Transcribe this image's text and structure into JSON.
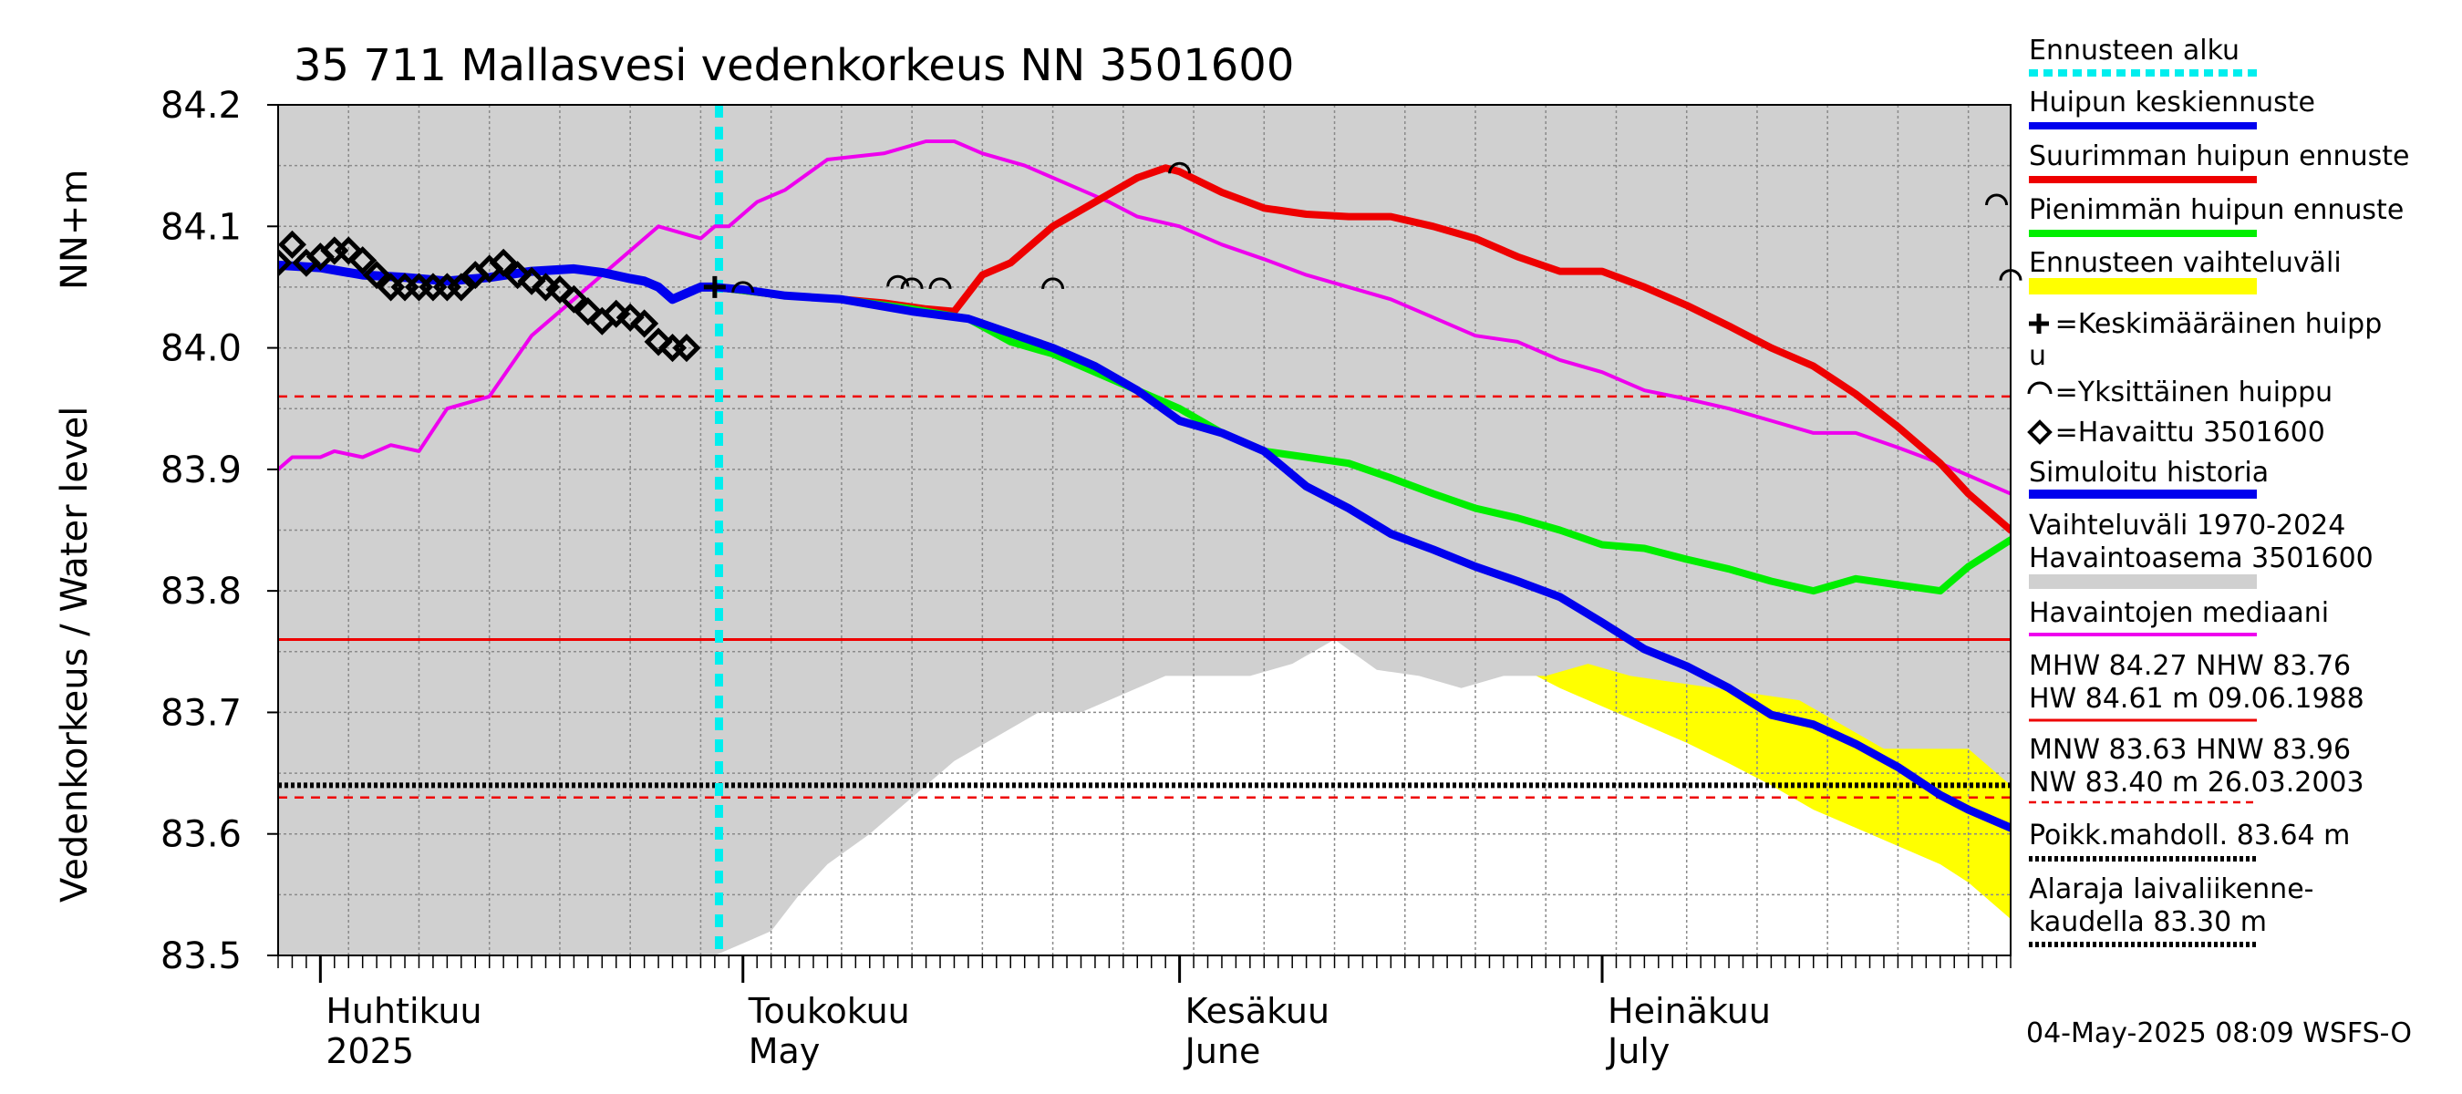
{
  "title": "35 711 Mallasvesi vedenkorkeus NN 3501600",
  "ylabel_main": "Vedenkorkeus / Water level",
  "ylabel_unit": "NN+m",
  "footer": "04-May-2025 08:09 WSFS-O",
  "colors": {
    "variation_band": "#d0d0d0",
    "forecast_band": "#ffff00",
    "mean_peak": "#0000ee",
    "max_peak": "#ee0000",
    "min_peak": "#00ee00",
    "median": "#ee00ee",
    "simulated": "#0000ee",
    "forecast_start": "#00eeee",
    "reference_line": "#ee0000"
  },
  "x_labels": [
    {
      "top": "Huhtikuu",
      "bottom": "2025"
    },
    {
      "top": "Toukokuu",
      "bottom": "May"
    },
    {
      "top": "Kesäkuu",
      "bottom": "June"
    },
    {
      "top": "Heinäkuu",
      "bottom": "July"
    }
  ],
  "legend": [
    {
      "key": "forecast_start",
      "label": "Ennusteen alku"
    },
    {
      "key": "mean_peak",
      "label": "Huipun keskiennuste"
    },
    {
      "key": "max_peak",
      "label": "Suurimman huipun ennuste"
    },
    {
      "key": "min_peak",
      "label": "Pienimmän huipun ennuste"
    },
    {
      "key": "forecast_band",
      "label": "Ennusteen vaihteluväli"
    },
    {
      "key": "mean_marker",
      "label_lines": [
        "=Keskimääräinen huipp",
        "u"
      ]
    },
    {
      "key": "single_peak",
      "label": "=Yksittäinen huippu"
    },
    {
      "key": "observed",
      "label": "=Havaittu 3501600"
    },
    {
      "key": "simulated",
      "label": "Simuloitu historia"
    },
    {
      "key": "variation_band",
      "label_lines": [
        "Vaihteluväli 1970-2024",
        " Havaintoasema 3501600"
      ]
    },
    {
      "key": "median",
      "label": "Havaintojen mediaani"
    },
    {
      "key": "stats_high",
      "label_lines": [
        "MHW  84.27 NHW  83.76",
        "HW  84.61 m 09.06.1988"
      ]
    },
    {
      "key": "stats_low",
      "label_lines": [
        "MNW  83.63 HNW  83.96",
        "NW  83.40 m 26.03.2003"
      ]
    },
    {
      "key": "poikk",
      "label": "Poikk.mahdoll. 83.64 m"
    },
    {
      "key": "alaraja",
      "label_lines": [
        "Alaraja laivaliikenne-",
        "kaudella 83.30 m"
      ]
    }
  ],
  "chart_data": {
    "type": "line",
    "title": "35 711 Mallasvesi vedenkorkeus NN 3501600",
    "ylabel": "Vedenkorkeus / Water level NN+m",
    "x_unit": "day of year 2025",
    "xlim": [
      88,
      211
    ],
    "ylim": [
      83.5,
      84.2
    ],
    "y_ticks": [
      "84.2",
      "84.1",
      "84.0",
      "83.9",
      "83.8",
      "83.7",
      "83.6",
      "83.5"
    ],
    "grid": true,
    "forecast_start_day": 119.3,
    "reference_lines": {
      "NHW": 83.76,
      "HNW": 83.96,
      "MNW": 83.63,
      "poikk": 83.64
    },
    "series": [
      {
        "name": "Huipun keskiennuste",
        "key": "mean_peak",
        "x": [
          119,
          121,
          124,
          128,
          133,
          137,
          140,
          143,
          146,
          149,
          152,
          155,
          158,
          161,
          164,
          167,
          170,
          173,
          176,
          179,
          182,
          185,
          188,
          191,
          194,
          197,
          200,
          203,
          206,
          208,
          211
        ],
        "y": [
          84.05,
          84.048,
          84.043,
          84.04,
          84.03,
          84.024,
          84.012,
          84.0,
          83.985,
          83.965,
          83.94,
          83.93,
          83.915,
          83.886,
          83.868,
          83.847,
          83.834,
          83.82,
          83.808,
          83.795,
          83.774,
          83.752,
          83.738,
          83.72,
          83.698,
          83.69,
          83.674,
          83.655,
          83.632,
          83.62,
          83.605
        ]
      },
      {
        "name": "Suurimman huipun ennuste",
        "key": "max_peak",
        "x": [
          119,
          124,
          128,
          131,
          134,
          136,
          138,
          140,
          143,
          146,
          149,
          151,
          152,
          155,
          158,
          161,
          164,
          167,
          170,
          173,
          176,
          179,
          182,
          185,
          188,
          191,
          194,
          197,
          200,
          203,
          206,
          208,
          211
        ],
        "y": [
          84.05,
          84.043,
          84.04,
          84.037,
          84.032,
          84.03,
          84.06,
          84.07,
          84.1,
          84.12,
          84.14,
          84.148,
          84.145,
          84.128,
          84.115,
          84.11,
          84.108,
          84.108,
          84.1,
          84.09,
          84.075,
          84.063,
          84.063,
          84.05,
          84.035,
          84.018,
          84.0,
          83.985,
          83.962,
          83.935,
          83.905,
          83.88,
          83.85
        ]
      },
      {
        "name": "Pienimmän huipun ennuste",
        "key": "min_peak",
        "x": [
          119,
          124,
          128,
          133,
          137,
          140,
          143,
          146,
          149,
          152,
          155,
          158,
          161,
          164,
          167,
          170,
          173,
          176,
          179,
          182,
          185,
          188,
          191,
          194,
          197,
          200,
          203,
          206,
          208,
          211
        ],
        "y": [
          84.05,
          84.043,
          84.04,
          84.032,
          84.024,
          84.005,
          83.995,
          83.98,
          83.965,
          83.95,
          83.93,
          83.915,
          83.91,
          83.905,
          83.893,
          83.88,
          83.868,
          83.86,
          83.85,
          83.838,
          83.835,
          83.826,
          83.818,
          83.808,
          83.8,
          83.81,
          83.805,
          83.8,
          83.82,
          83.842
        ]
      },
      {
        "name": "Havaintojen mediaani",
        "key": "median",
        "x": [
          88,
          89,
          91,
          92,
          94,
          96,
          98,
          100,
          103,
          106,
          109,
          112,
          115,
          118,
          119,
          120,
          122,
          124,
          127,
          131,
          134,
          136,
          138,
          141,
          144,
          147,
          149,
          152,
          155,
          158,
          161,
          164,
          167,
          170,
          173,
          176,
          179,
          182,
          185,
          188,
          191,
          194,
          197,
          200,
          203,
          206,
          208,
          211
        ],
        "y": [
          83.9,
          83.91,
          83.91,
          83.915,
          83.91,
          83.92,
          83.915,
          83.95,
          83.96,
          84.01,
          84.04,
          84.07,
          84.1,
          84.09,
          84.1,
          84.1,
          84.12,
          84.13,
          84.155,
          84.16,
          84.17,
          84.17,
          84.16,
          84.15,
          84.135,
          84.12,
          84.108,
          84.1,
          84.085,
          84.073,
          84.06,
          84.05,
          84.04,
          84.025,
          84.01,
          84.005,
          83.99,
          83.98,
          83.965,
          83.958,
          83.95,
          83.94,
          83.93,
          83.93,
          83.918,
          83.905,
          83.895,
          83.88
        ]
      },
      {
        "name": "Simuloitu historia",
        "key": "simulated",
        "x": [
          88,
          91,
          94,
          97,
          100,
          103,
          106,
          109,
          111,
          113,
          114,
          115,
          116,
          117,
          118,
          119
        ],
        "y": [
          84.068,
          84.066,
          84.06,
          84.058,
          84.055,
          84.058,
          84.063,
          84.065,
          84.062,
          84.057,
          84.055,
          84.05,
          84.04,
          84.045,
          84.05,
          84.05
        ]
      },
      {
        "name": "Havaittu 3501600",
        "key": "observed",
        "x": [
          88,
          89,
          90,
          91,
          92,
          93,
          94,
          95,
          96,
          97,
          98,
          99,
          100,
          101,
          102,
          103,
          104,
          105,
          106,
          107,
          108,
          109,
          110,
          111,
          112,
          113,
          114,
          115,
          116,
          117
        ],
        "y": [
          84.07,
          84.085,
          84.07,
          84.075,
          84.08,
          84.08,
          84.072,
          84.06,
          84.05,
          84.05,
          84.05,
          84.05,
          84.05,
          84.05,
          84.06,
          84.065,
          84.07,
          84.06,
          84.055,
          84.05,
          84.048,
          84.04,
          84.03,
          84.022,
          84.028,
          84.025,
          84.02,
          84.005,
          84.0,
          84.0
        ]
      }
    ],
    "bands": [
      {
        "name": "Ennusteen vaihteluväli",
        "key": "forecast_band",
        "x": [
          119,
          124,
          128,
          133,
          137,
          140,
          143,
          146,
          149,
          152,
          155,
          158,
          161,
          164,
          167,
          170,
          173,
          176,
          179,
          182,
          185,
          188,
          191,
          194,
          197,
          200,
          203,
          206,
          208,
          211
        ],
        "upper": [
          84.05,
          84.05,
          84.053,
          84.055,
          84.06,
          84.07,
          84.1,
          84.12,
          84.14,
          84.148,
          84.13,
          84.12,
          84.11,
          84.108,
          84.108,
          84.1,
          84.09,
          84.078,
          84.065,
          84.06,
          84.05,
          84.042,
          84.038,
          84.04,
          84.045,
          84.05,
          84.06,
          84.08,
          84.09,
          84.11
        ],
        "lower": [
          84.05,
          84.04,
          84.03,
          84.015,
          84.0,
          83.985,
          83.965,
          83.945,
          83.928,
          83.915,
          83.9,
          83.875,
          83.855,
          83.83,
          83.8,
          83.775,
          83.752,
          83.738,
          83.72,
          83.705,
          83.69,
          83.675,
          83.658,
          83.64,
          83.62,
          83.605,
          83.59,
          83.575,
          83.56,
          83.53
        ]
      },
      {
        "name": "Vaihteluväli 1970-2024",
        "key": "variation_band",
        "x": [
          88,
          111,
          115,
          119,
          121,
          123,
          125,
          127,
          130,
          133,
          136,
          139,
          142,
          145,
          148,
          151,
          154,
          157,
          160,
          163,
          166,
          169,
          172,
          175,
          178,
          181,
          184,
          187,
          190,
          193,
          196,
          199,
          202,
          205,
          208,
          211
        ],
        "upper": [
          84.2,
          84.2,
          84.2,
          84.2,
          84.2,
          84.2,
          84.2,
          84.2,
          84.2,
          84.2,
          84.2,
          84.2,
          84.2,
          84.2,
          84.2,
          84.2,
          84.2,
          84.2,
          84.2,
          84.2,
          84.2,
          84.2,
          84.2,
          84.2,
          84.2,
          84.2,
          84.2,
          84.2,
          84.2,
          84.2,
          84.2,
          84.2,
          84.2,
          84.2,
          84.2,
          84.2
        ],
        "lower": [
          83.5,
          83.5,
          83.5,
          83.5,
          83.51,
          83.52,
          83.55,
          83.575,
          83.6,
          83.63,
          83.66,
          83.68,
          83.7,
          83.7,
          83.715,
          83.73,
          83.73,
          83.73,
          83.74,
          83.76,
          83.735,
          83.73,
          83.72,
          83.73,
          83.73,
          83.74,
          83.73,
          83.725,
          83.72,
          83.715,
          83.71,
          83.69,
          83.67,
          83.67,
          83.67,
          83.64
        ]
      }
    ],
    "peak_markers": {
      "mean_peak": {
        "x": 119,
        "y": 84.05
      },
      "single_peaks": [
        {
          "x": 121,
          "y": 84.05
        },
        {
          "x": 132,
          "y": 84.055
        },
        {
          "x": 133,
          "y": 84.053
        },
        {
          "x": 135,
          "y": 84.053
        },
        {
          "x": 143,
          "y": 84.053
        },
        {
          "x": 152,
          "y": 84.148
        },
        {
          "x": 210,
          "y": 84.122
        },
        {
          "x": 211,
          "y": 84.06
        }
      ]
    }
  }
}
